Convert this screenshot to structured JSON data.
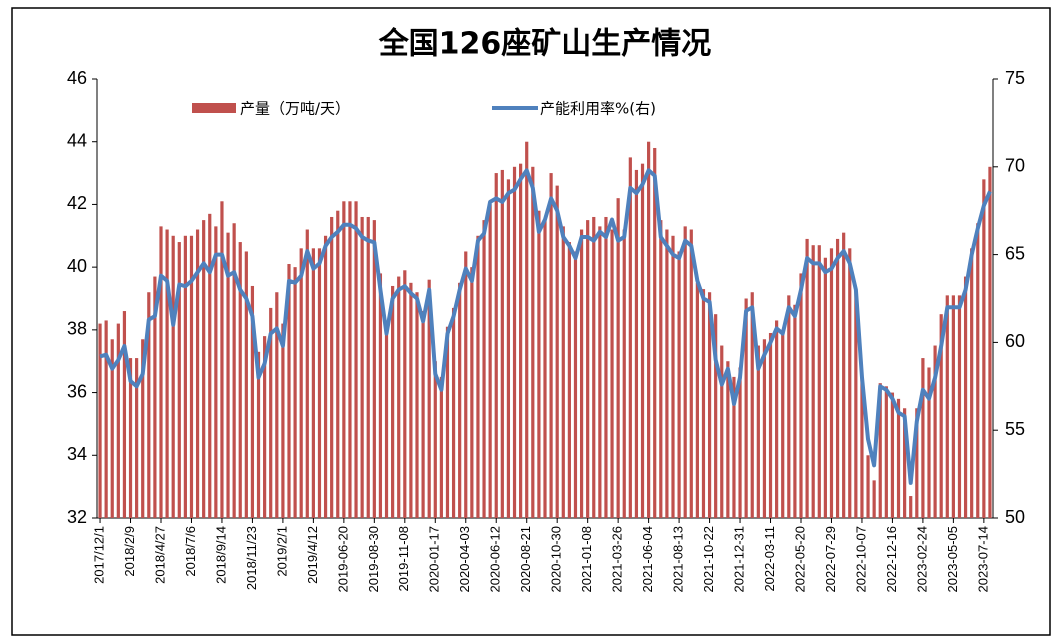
{
  "chart_data": {
    "type": "bar",
    "title": "全国126座矿山生产情况",
    "categories": [
      "2017/12/1",
      null,
      null,
      null,
      null,
      "2018/2/9",
      null,
      null,
      null,
      null,
      "2018/4/27",
      null,
      null,
      null,
      null,
      "2018/7/6",
      null,
      null,
      null,
      null,
      "2018/9/14",
      null,
      null,
      null,
      null,
      "2018/11/23",
      null,
      null,
      null,
      null,
      "2019/2/1",
      null,
      null,
      null,
      null,
      "2019/4/12",
      null,
      null,
      null,
      null,
      "2019-06-20",
      null,
      null,
      null,
      null,
      "2019-08-30",
      null,
      null,
      null,
      null,
      "2019-11-08",
      null,
      null,
      null,
      null,
      "2020-01-17",
      null,
      null,
      null,
      null,
      "2020-04-03",
      null,
      null,
      null,
      null,
      "2020-06-12",
      null,
      null,
      null,
      null,
      "2020-08-21",
      null,
      null,
      null,
      null,
      "2020-10-30",
      null,
      null,
      null,
      null,
      "2021-01-08",
      null,
      null,
      null,
      null,
      "2021-03-26",
      null,
      null,
      null,
      null,
      "2021-06-04",
      null,
      null,
      null,
      null,
      "2021-08-13",
      null,
      null,
      null,
      null,
      "2021-10-22",
      null,
      null,
      null,
      null,
      "2021-12-31",
      null,
      null,
      null,
      null,
      "2022-03-11",
      null,
      null,
      null,
      null,
      "2022-05-20",
      null,
      null,
      null,
      null,
      "2022-07-29",
      null,
      null,
      null,
      null,
      "2022-10-07",
      null,
      null,
      null,
      null,
      "2022-12-16",
      null,
      null,
      null,
      null,
      "2023-02-24",
      null,
      null,
      null,
      null,
      "2023-05-05",
      null,
      null,
      null,
      null,
      "2023-07-14",
      null
    ],
    "series": [
      {
        "name": "产量（万吨/天）",
        "type": "bar",
        "color": "#c0504d",
        "values": [
          38.2,
          38.3,
          37.7,
          38.2,
          38.6,
          37.1,
          37.1,
          37.7,
          39.2,
          39.7,
          41.3,
          41.2,
          41.0,
          40.8,
          41.0,
          41.0,
          41.2,
          41.5,
          41.7,
          41.3,
          42.1,
          41.1,
          41.4,
          40.8,
          40.5,
          39.4,
          37.3,
          37.8,
          38.7,
          39.2,
          38.2,
          40.1,
          40.0,
          40.6,
          41.2,
          40.6,
          40.6,
          41.0,
          41.6,
          41.8,
          42.1,
          42.1,
          42.1,
          41.6,
          41.6,
          41.5,
          39.8,
          38.2,
          39.4,
          39.7,
          39.9,
          39.5,
          39.2,
          38.6,
          39.6,
          37.0,
          36.5,
          38.1,
          38.7,
          39.5,
          40.5,
          40.0,
          41.0,
          41.5,
          42.0,
          43.0,
          43.1,
          42.8,
          43.2,
          43.3,
          44.0,
          43.2,
          41.8,
          41.5,
          43.0,
          42.6,
          41.3,
          40.8,
          40.5,
          41.2,
          41.5,
          41.6,
          41.3,
          41.6,
          41.2,
          42.2,
          41.2,
          43.5,
          43.1,
          43.3,
          44.0,
          43.8,
          41.5,
          41.2,
          41.0,
          40.5,
          41.3,
          41.2,
          39.5,
          39.3,
          39.2,
          38.5,
          37.5,
          37.0,
          36.5,
          36.8,
          39.0,
          39.2,
          37.5,
          37.7,
          37.9,
          38.3,
          38.0,
          39.1,
          38.8,
          39.8,
          40.9,
          40.7,
          40.7,
          40.3,
          40.6,
          40.9,
          41.1,
          40.6,
          39.3,
          36.5,
          34.0,
          33.2,
          36.3,
          36.2,
          36.0,
          35.8,
          35.5,
          32.7,
          35.5,
          37.1,
          36.8,
          37.5,
          38.5,
          39.1,
          39.1,
          39.1,
          39.7,
          40.6,
          41.4,
          42.8,
          43.2
        ]
      },
      {
        "name": "产能利用率%(右)",
        "type": "line",
        "axis": "y2",
        "color": "#4f81bd",
        "values": [
          59.2,
          59.3,
          58.5,
          59.0,
          59.8,
          57.8,
          57.5,
          58.2,
          61.3,
          61.5,
          63.8,
          63.5,
          61.0,
          63.3,
          63.2,
          63.5,
          64.0,
          64.5,
          64.0,
          65.0,
          65.0,
          63.8,
          64.0,
          63.0,
          62.5,
          61.5,
          58.0,
          58.8,
          60.5,
          60.8,
          59.8,
          63.5,
          63.4,
          63.8,
          65.2,
          64.2,
          64.5,
          65.5,
          66.0,
          66.3,
          66.7,
          66.7,
          66.5,
          66.0,
          65.8,
          65.7,
          63.0,
          60.5,
          62.5,
          63.0,
          63.2,
          62.8,
          62.5,
          61.2,
          63.0,
          58.2,
          57.3,
          60.5,
          61.5,
          63.0,
          64.2,
          63.5,
          65.8,
          66.2,
          68.0,
          68.2,
          68.0,
          68.5,
          68.7,
          69.3,
          69.8,
          68.8,
          66.3,
          67.0,
          68.2,
          67.5,
          66.0,
          65.5,
          64.8,
          66.0,
          66.0,
          65.8,
          66.3,
          66.0,
          67.0,
          65.8,
          66.0,
          68.8,
          68.5,
          69.0,
          69.8,
          69.5,
          66.0,
          65.5,
          65.0,
          64.8,
          65.8,
          65.5,
          63.5,
          62.5,
          62.3,
          59.0,
          57.6,
          58.5,
          56.5,
          58.0,
          61.8,
          62.0,
          58.5,
          59.3,
          60.0,
          60.8,
          60.5,
          62.0,
          61.5,
          63.0,
          64.8,
          64.5,
          64.5,
          64.0,
          64.2,
          64.8,
          65.2,
          64.5,
          63.0,
          58.0,
          54.5,
          53.0,
          57.5,
          57.3,
          56.8,
          56.0,
          55.8,
          52.0,
          55.5,
          57.3,
          56.8,
          58.0,
          59.8,
          62.0,
          62.0,
          62.0,
          63.0,
          65.0,
          66.5,
          67.8,
          68.6
        ]
      }
    ],
    "ylim": [
      32,
      46
    ],
    "yticks": [
      32,
      34,
      36,
      38,
      40,
      42,
      44,
      46
    ],
    "y2lim": [
      50,
      75
    ],
    "y2ticks": [
      50,
      55,
      60,
      65,
      70,
      75
    ]
  }
}
